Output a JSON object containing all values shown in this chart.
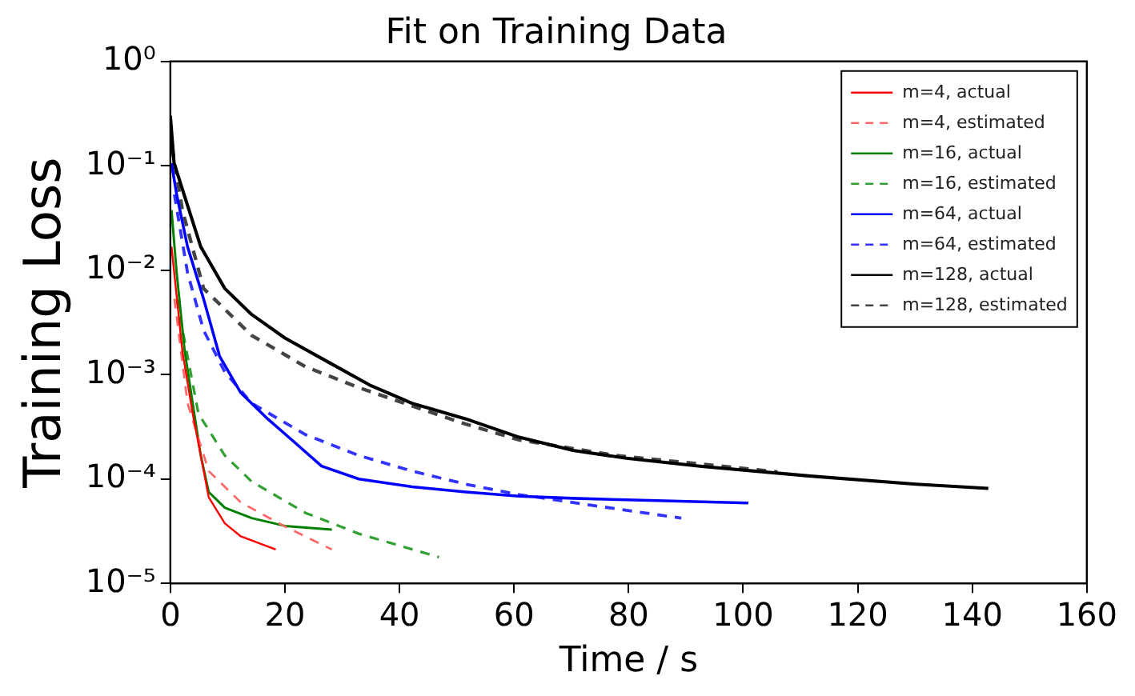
{
  "chart_data": {
    "type": "line",
    "title": "Fit on Training Data",
    "xlabel": "Time / s",
    "ylabel": "Training Loss",
    "xlim": [
      0,
      160
    ],
    "xticks": [
      0,
      20,
      40,
      60,
      80,
      100,
      120,
      140,
      160
    ],
    "ylim": [
      1e-05,
      1
    ],
    "log": "y",
    "yticks": [
      {
        "value": 1e-05,
        "label": "10⁻⁵"
      },
      {
        "value": 0.0001,
        "label": "10⁻⁴"
      },
      {
        "value": 0.001,
        "label": "10⁻³"
      },
      {
        "value": 0.01,
        "label": "10⁻²"
      },
      {
        "value": 0.1,
        "label": "10⁻¹"
      },
      {
        "value": 1,
        "label": "10⁰"
      }
    ],
    "grid": false,
    "legend": "top right",
    "marker": "none",
    "series": [
      {
        "name": "m=4, actual",
        "color": "#ff0000",
        "line_style": "solid",
        "x": [
          0.2,
          2.1,
          3.9,
          5.3,
          6.7,
          9.5,
          12.3,
          18.4
        ],
        "values": [
          0.0168,
          0.00168,
          0.000422,
          0.000168,
          6.68e-05,
          3.76e-05,
          2.82e-05,
          2.11e-05
        ]
      },
      {
        "name": "m=4, estimated",
        "color": "#ff6666",
        "line_style": "dashed",
        "x": [
          0.7,
          3,
          6.7,
          12.3,
          19.8,
          28.2
        ],
        "values": [
          0.00531,
          0.000531,
          0.000119,
          5.96e-05,
          3.55e-05,
          2.11e-05
        ]
      },
      {
        "name": "m=16, actual",
        "color": "#008000",
        "line_style": "solid",
        "x": [
          0.2,
          1.1,
          2.5,
          3.9,
          5.3,
          6.7,
          9.5,
          14.2,
          20,
          28.2
        ],
        "values": [
          0.0376,
          0.00944,
          0.00168,
          0.000531,
          0.000168,
          7.5e-05,
          5.31e-05,
          4.22e-05,
          3.55e-05,
          3.27e-05
        ]
      },
      {
        "name": "m=16, estimated",
        "color": "#33a033",
        "line_style": "dashed",
        "x": [
          1.1,
          4.9,
          9.5,
          14.2,
          23.6,
          32.9,
          46.9
        ],
        "values": [
          0.00531,
          0.000422,
          0.000168,
          9.44e-05,
          4.73e-05,
          2.99e-05,
          1.78e-05
        ]
      },
      {
        "name": "m=64, actual",
        "color": "#0000ff",
        "line_style": "solid",
        "x": [
          0.2,
          1.1,
          3,
          5.8,
          8.6,
          12.3,
          17,
          21.7,
          26.4,
          32.9,
          42.2,
          51.6,
          60.9,
          70.3,
          79.6,
          100.9
        ],
        "values": [
          0.106,
          0.0531,
          0.0168,
          0.00531,
          0.0015,
          0.000668,
          0.000376,
          0.000224,
          0.000133,
          0.0001,
          8.41e-05,
          7.5e-05,
          6.84e-05,
          6.53e-05,
          6.31e-05,
          5.89e-05
        ]
      },
      {
        "name": "m=64, estimated",
        "color": "#3333ff",
        "line_style": "dashed",
        "x": [
          0.7,
          3,
          5.8,
          9.5,
          14.2,
          23.6,
          32.9,
          42.2,
          51.6,
          60.9,
          79.6,
          89.2
        ],
        "values": [
          0.0531,
          0.00944,
          0.00266,
          0.00106,
          0.000531,
          0.000266,
          0.000168,
          0.000119,
          8.91e-05,
          7.08e-05,
          5.01e-05,
          4.22e-05
        ]
      },
      {
        "name": "m=128, actual",
        "color": "#000000",
        "line_style": "solid",
        "x": [
          0,
          0.65,
          2.1,
          5.3,
          9.5,
          14.2,
          20,
          28.2,
          34.8,
          42.2,
          51.6,
          60.9,
          70.3,
          79.6,
          92.8,
          111.4,
          130.2,
          142.8
        ],
        "values": [
          0.3,
          0.106,
          0.0596,
          0.0168,
          0.00668,
          0.00376,
          0.00224,
          0.00126,
          0.000794,
          0.000531,
          0.000376,
          0.000251,
          0.000188,
          0.000158,
          0.000132,
          0.000107,
          8.91e-05,
          8.13e-05
        ]
      },
      {
        "name": "m=128, estimated",
        "color": "#444444",
        "line_style": "dashed",
        "x": [
          0.3,
          2.1,
          5.8,
          14.2,
          23.6,
          32.9,
          42.2,
          51.6,
          60.9,
          77.8,
          106
        ],
        "values": [
          0.15,
          0.0376,
          0.00668,
          0.00237,
          0.00119,
          0.00075,
          0.000501,
          0.000335,
          0.000237,
          0.000168,
          0.000117
        ]
      }
    ]
  }
}
